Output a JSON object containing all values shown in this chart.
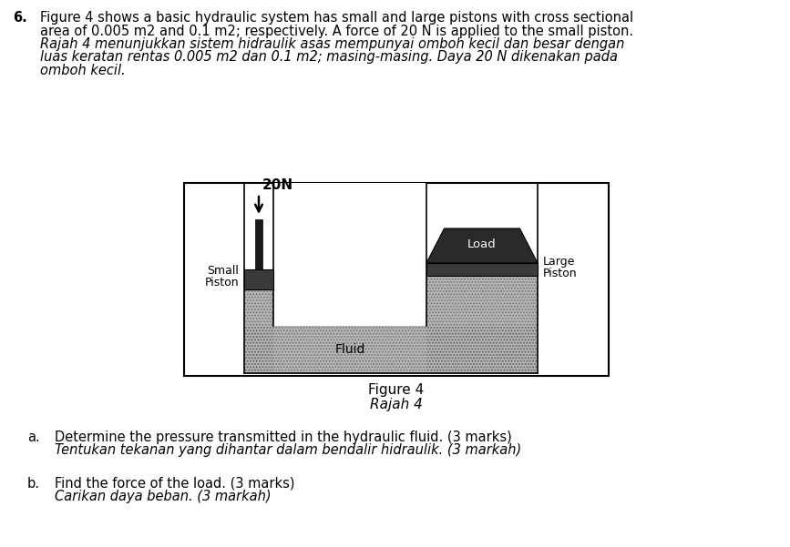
{
  "fig_width": 8.67,
  "fig_height": 6.01,
  "bg_color": "#ffffff",
  "question_number": "6.",
  "question_text_line1": "Figure 4 shows a basic hydraulic system has small and large pistons with cross sectional",
  "question_text_line2": "area of 0.005 m2 and 0.1 m2; respectively. A force of 20 N is applied to the small piston.",
  "question_text_italic_line1": "Rajah 4 menunjukkan sistem hidraulik asas mempunyai omboh kecil dan besar dengan",
  "question_text_italic_line2": "luas keratan rentas 0.005 m2 dan 0.1 m2; masing-masing. Daya 20 N dikenakan pada",
  "question_text_italic_line3": "omboh kecil.",
  "figure_caption_line1": "Figure 4",
  "figure_caption_line2": "Rajah 4",
  "part_a_label": "a.",
  "part_a_line1": "Determine the pressure transmitted in the hydraulic fluid. (3 marks)",
  "part_a_line2": "Tentukan tekanan yang dihantar dalam bendalir hidraulik. (3 markah)",
  "part_b_label": "b.",
  "part_b_line1": "Find the force of the load. (3 marks)",
  "part_b_line2": "Carikan daya beban. (3 markah)",
  "force_label": "20N",
  "small_piston_label_line1": "Small",
  "small_piston_label_line2": "Piston",
  "large_piston_label_line1": "Large",
  "large_piston_label_line2": "Piston",
  "fluid_label": "Fluid",
  "load_label": "Load",
  "fluid_color": "#b8b8b8",
  "piston_dark_color": "#3a3a3a",
  "piston_mid_color": "#606060",
  "load_color": "#2a2a2a",
  "rod_color": "#1a1a1a",
  "box_edge_color": "#000000",
  "text_color": "#000000"
}
